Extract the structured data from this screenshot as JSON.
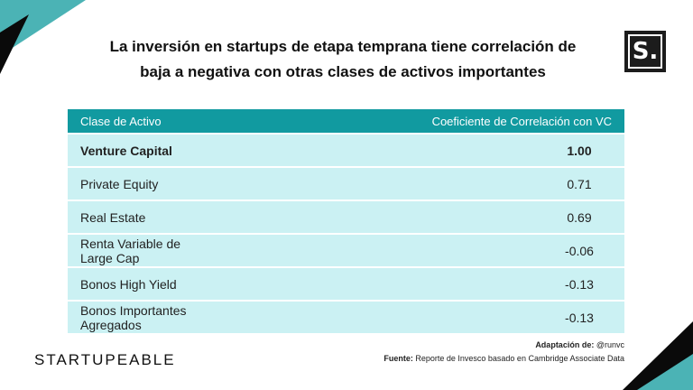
{
  "title_line1": "La inversión en startups de etapa temprana tiene correlación de",
  "title_line2": "baja a negativa con otras clases de activos importantes",
  "logo_letter": "S.",
  "table": {
    "headers": [
      "Clase de Activo",
      "Coeficiente de Correlación con VC"
    ],
    "rows": [
      {
        "asset": "Venture Capital",
        "value": "1.00"
      },
      {
        "asset": "Private Equity",
        "value": "0.71"
      },
      {
        "asset": "Real Estate",
        "value": "0.69"
      },
      {
        "asset": "Renta Variable de Large Cap",
        "value": "-0.06"
      },
      {
        "asset": "Bonos High Yield",
        "value": "-0.13"
      },
      {
        "asset": "Bonos Importantes Agregados",
        "value": "-0.13"
      }
    ]
  },
  "brand": "STARTUPEABLE",
  "credits": {
    "adaptation_label": "Adaptación de:",
    "adaptation_value": "@runvc",
    "source_label": "Fuente:",
    "source_value": "Reporte de Invesco basado en Cambridge Associate Data"
  },
  "colors": {
    "header_bg": "#119aa0",
    "row_bg": "#cbf1f3",
    "corner_teal": "#4bb3b5",
    "corner_dark": "#0a0a0a"
  }
}
